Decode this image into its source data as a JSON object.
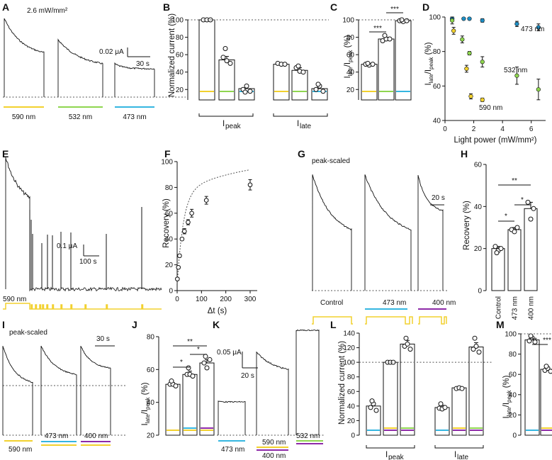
{
  "colors": {
    "yellow": "#f2d12e",
    "green": "#8fd64f",
    "cyan": "#35b6e0",
    "purple": "#8e2aa8",
    "blue": "#1d8fc6",
    "black": "#111111"
  },
  "panels": {
    "A": {
      "letter": "A",
      "intensity": "2.6 mW/mm²",
      "scale_y": "0.02 μA",
      "scale_x": "30 s",
      "labels": [
        "590 nm",
        "532 nm",
        "473 nm"
      ]
    },
    "B": {
      "letter": "B",
      "ylabel": "Normalized current (%)",
      "yticks": [
        "20",
        "40",
        "60",
        "80",
        "100"
      ],
      "group1": "I",
      "group1_sub": "peak",
      "group2": "I",
      "group2_sub": "late"
    },
    "C": {
      "letter": "C",
      "ylabel_main": "I",
      "ylabel_sub1": "late",
      "ylabel_slash": "/I",
      "ylabel_sub2": "peak",
      "ylabel_unit": "(%)",
      "yticks": [
        "0",
        "20",
        "40",
        "60",
        "80",
        "100"
      ],
      "stars": [
        "***",
        "***"
      ]
    },
    "D": {
      "letter": "D",
      "ylabel_main": "I",
      "ylabel_sub1": "late",
      "ylabel_slash": "/I",
      "ylabel_sub2": "peak",
      "ylabel_unit": "(%)",
      "xlabel": "Light power (mW/mm²)",
      "yticks": [
        "40",
        "60",
        "80",
        "100"
      ],
      "xticks": [
        "0",
        "2",
        "4",
        "6"
      ],
      "series_labels": [
        "473 nm",
        "532 nm",
        "590 nm"
      ]
    },
    "E": {
      "letter": "E",
      "scale_y": "0.1 μA",
      "scale_x": "100 s",
      "stim": "590 nm"
    },
    "F": {
      "letter": "F",
      "ylabel": "Recovery (%)",
      "xlabel": "Δt (s)",
      "yticks": [
        "0",
        "20",
        "40",
        "60",
        "80",
        "100"
      ],
      "xticks": [
        "0",
        "100",
        "200",
        "300"
      ]
    },
    "G": {
      "letter": "G",
      "note": "peak-scaled",
      "scale_x": "20 s",
      "labels": [
        "Control",
        "473 nm",
        "400 nm"
      ]
    },
    "H": {
      "letter": "H",
      "ylabel": "Recovery (%)",
      "yticks": [
        "0",
        "20",
        "40",
        "60"
      ],
      "xticks": [
        "Control",
        "473 nm",
        "400 nm"
      ],
      "stars": [
        "**",
        "*",
        "*"
      ]
    },
    "I": {
      "letter": "I",
      "note": "peak-scaled",
      "scale_x": "30 s",
      "labels": [
        "590 nm",
        "473 nm",
        "400 nm"
      ]
    },
    "J": {
      "letter": "J",
      "ylabel_main": "I",
      "ylabel_sub1": "late",
      "ylabel_slash": "/I",
      "ylabel_sub2": "peak",
      "ylabel_unit": "(%)",
      "yticks": [
        "20",
        "40",
        "60",
        "80"
      ],
      "stars": [
        "**",
        "*",
        "*"
      ]
    },
    "K": {
      "letter": "K",
      "scale_y": "0.05 μA",
      "scale_x": "20 s",
      "labels": [
        "473 nm",
        "590 nm",
        "400 nm",
        "532 nm"
      ]
    },
    "L": {
      "letter": "L",
      "ylabel": "Normalized current (%)",
      "yticks": [
        "0",
        "20",
        "40",
        "60",
        "80",
        "100",
        "120",
        "140"
      ],
      "group1": "I",
      "group1_sub": "peak",
      "group2": "I",
      "group2_sub": "late"
    },
    "M": {
      "letter": "M",
      "ylabel_main": "I",
      "ylabel_sub1": "late",
      "ylabel_slash": "/I",
      "ylabel_sub2": "peak",
      "ylabel_unit": "(%)",
      "yticks": [
        "0",
        "20",
        "40",
        "60",
        "80",
        "100"
      ],
      "stars": [
        "***",
        "***"
      ]
    }
  },
  "chart_data": [
    {
      "panel": "B",
      "type": "bar",
      "ylim": [
        0,
        100
      ],
      "categories": [
        "Ipeak 590",
        "Ipeak 532",
        "Ipeak 473",
        "Ilate 590",
        "Ilate 532",
        "Ilate 473"
      ],
      "values": [
        100,
        54,
        21,
        49,
        42,
        21
      ],
      "errors": [
        0,
        4,
        3,
        1,
        3,
        3
      ]
    },
    {
      "panel": "C",
      "type": "bar",
      "ylim": [
        0,
        100
      ],
      "categories": [
        "590",
        "532",
        "473"
      ],
      "values": [
        49,
        78,
        99
      ],
      "errors": [
        1,
        2,
        1
      ]
    },
    {
      "panel": "D",
      "type": "scatter",
      "xlim": [
        0,
        7
      ],
      "ylim": [
        40,
        100
      ],
      "series": [
        {
          "name": "473 nm",
          "color": "blue",
          "x": [
            0.5,
            1.3,
            1.7,
            2.6,
            5,
            6.5
          ],
          "y": [
            99,
            99,
            99,
            98,
            96,
            94
          ],
          "err": [
            1,
            0.5,
            0.5,
            1,
            1.5,
            2
          ]
        },
        {
          "name": "532 nm",
          "color": "green",
          "x": [
            0.5,
            1.2,
            1.7,
            2.6,
            5,
            6.5
          ],
          "y": [
            98,
            87,
            79,
            74,
            66,
            58
          ],
          "err": [
            2,
            2,
            1,
            3,
            5,
            6
          ]
        },
        {
          "name": "590 nm",
          "color": "yellow",
          "x": [
            0.6,
            1.5,
            1.8,
            2.6
          ],
          "y": [
            92,
            70,
            54,
            52
          ],
          "err": [
            2,
            2,
            1.5,
            1
          ]
        }
      ]
    },
    {
      "panel": "F",
      "type": "scatter",
      "xlim": [
        0,
        300
      ],
      "ylim": [
        0,
        100
      ],
      "x": [
        1,
        5,
        10,
        20,
        30,
        45,
        60,
        120,
        300
      ],
      "y": [
        9,
        18,
        27,
        40,
        46,
        53,
        60,
        70,
        82
      ],
      "err": [
        1,
        1,
        1,
        1,
        2,
        2,
        3,
        3,
        4
      ]
    },
    {
      "panel": "H",
      "type": "bar",
      "ylim": [
        0,
        60
      ],
      "categories": [
        "Control",
        "473 nm",
        "400 nm"
      ],
      "values": [
        20,
        29,
        39
      ],
      "errors": [
        1,
        1,
        3
      ]
    },
    {
      "panel": "J",
      "type": "bar",
      "ylim": [
        20,
        80
      ],
      "categories": [
        "590 nm",
        "473 nm",
        "400 nm"
      ],
      "values": [
        51,
        57,
        64
      ],
      "errors": [
        1,
        2,
        2
      ]
    },
    {
      "panel": "L",
      "type": "bar",
      "ylim": [
        0,
        140
      ],
      "categories": [
        "Ipeak 473",
        "Ipeak 590+400",
        "Ipeak 532",
        "Ilate 473",
        "Ilate 590+400",
        "Ilate 532"
      ],
      "values": [
        40,
        100,
        125,
        38,
        65,
        121
      ],
      "errors": [
        4,
        0,
        5,
        3,
        1,
        6
      ]
    },
    {
      "panel": "M",
      "type": "bar",
      "ylim": [
        0,
        100
      ],
      "categories": [
        "473",
        "590+400",
        "532"
      ],
      "values": [
        94,
        65,
        97
      ],
      "errors": [
        2,
        2,
        2
      ]
    }
  ]
}
